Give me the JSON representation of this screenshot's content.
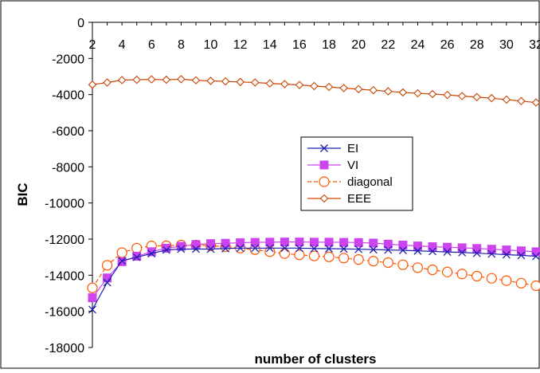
{
  "chart_data": {
    "type": "line",
    "xlabel": "number of clusters",
    "ylabel": "BIC",
    "ylim": [
      -18000,
      0
    ],
    "xlim": [
      2,
      32
    ],
    "y_ticks": [
      "0",
      "-2000",
      "-4000",
      "-6000",
      "-8000",
      "-10000",
      "-12000",
      "-14000",
      "-16000",
      "-18000"
    ],
    "x_ticks": [
      "2",
      "4",
      "6",
      "8",
      "10",
      "12",
      "14",
      "16",
      "18",
      "20",
      "22",
      "24",
      "26",
      "28",
      "30",
      "32"
    ],
    "x": [
      2,
      3,
      4,
      5,
      6,
      7,
      8,
      9,
      10,
      11,
      12,
      13,
      14,
      15,
      16,
      17,
      18,
      19,
      20,
      21,
      22,
      23,
      24,
      25,
      26,
      27,
      28,
      29,
      30,
      31,
      32
    ],
    "grid": false,
    "legend_position": "center-right",
    "series": [
      {
        "name": "EI",
        "color": "#1f1fb4",
        "marker": "x",
        "values": [
          -15900,
          -14400,
          -13200,
          -13000,
          -12800,
          -12600,
          -12550,
          -12550,
          -12550,
          -12520,
          -12500,
          -12500,
          -12500,
          -12500,
          -12500,
          -12520,
          -12530,
          -12540,
          -12560,
          -12580,
          -12600,
          -12620,
          -12650,
          -12680,
          -12710,
          -12740,
          -12780,
          -12820,
          -12860,
          -12900,
          -12950
        ]
      },
      {
        "name": "VI",
        "color": "#cc44ee",
        "marker": "square",
        "values": [
          -15250,
          -14150,
          -13250,
          -12950,
          -12700,
          -12500,
          -12400,
          -12300,
          -12250,
          -12230,
          -12200,
          -12180,
          -12170,
          -12160,
          -12160,
          -12170,
          -12170,
          -12180,
          -12190,
          -12220,
          -12280,
          -12330,
          -12380,
          -12420,
          -12450,
          -12480,
          -12520,
          -12560,
          -12600,
          -12650,
          -12700
        ]
      },
      {
        "name": "diagonal",
        "color": "#ff5500",
        "marker": "circle",
        "values": [
          -14700,
          -13450,
          -12750,
          -12500,
          -12380,
          -12370,
          -12330,
          -12330,
          -12360,
          -12420,
          -12500,
          -12580,
          -12700,
          -12800,
          -12870,
          -12930,
          -12980,
          -13050,
          -13130,
          -13220,
          -13300,
          -13420,
          -13580,
          -13700,
          -13820,
          -13930,
          -14050,
          -14170,
          -14300,
          -14440,
          -14580
        ]
      },
      {
        "name": "EEE",
        "color": "#cc4400",
        "marker": "diamond",
        "values": [
          -3450,
          -3330,
          -3200,
          -3180,
          -3160,
          -3180,
          -3150,
          -3210,
          -3240,
          -3270,
          -3300,
          -3330,
          -3380,
          -3420,
          -3470,
          -3530,
          -3580,
          -3640,
          -3700,
          -3760,
          -3820,
          -3880,
          -3930,
          -3970,
          -4020,
          -4080,
          -4140,
          -4200,
          -4280,
          -4360,
          -4440
        ]
      }
    ]
  }
}
